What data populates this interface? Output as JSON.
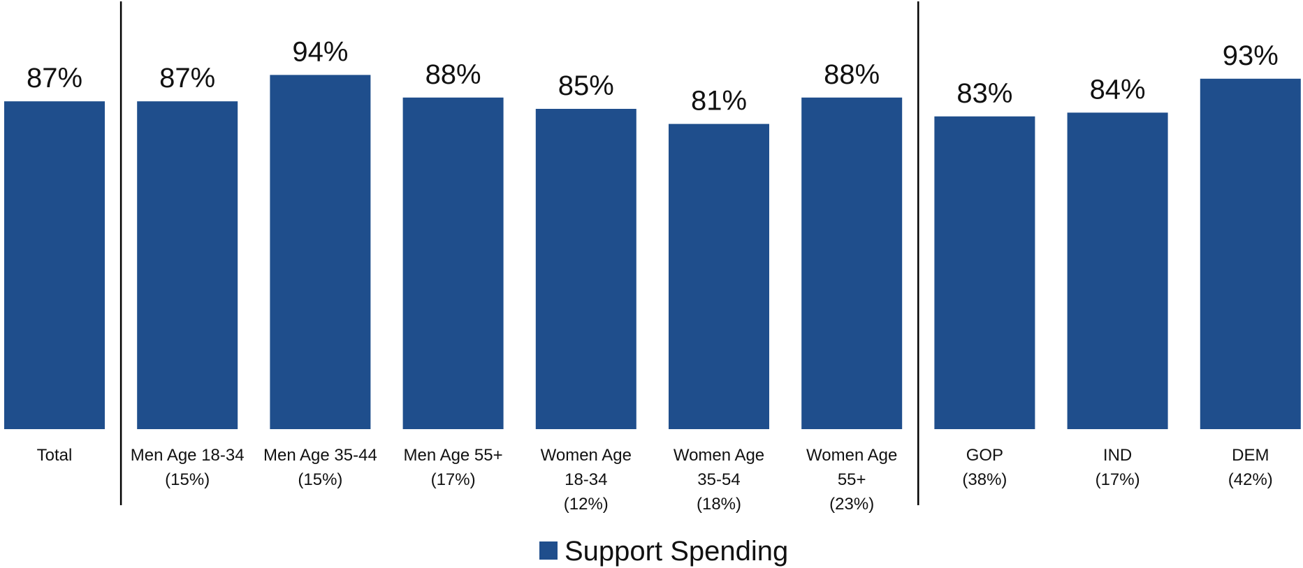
{
  "chart_data": {
    "type": "bar",
    "categories": [
      [
        "Total"
      ],
      [
        "Men Age 18-34",
        "(15%)"
      ],
      [
        "Men Age 35-44",
        "(15%)"
      ],
      [
        "Men Age 55+",
        "(17%)"
      ],
      [
        "Women Age",
        "18-34",
        "(12%)"
      ],
      [
        "Women Age",
        "35-54",
        "(18%)"
      ],
      [
        "Women Age",
        "55+",
        "(23%)"
      ],
      [
        "GOP",
        "(38%)"
      ],
      [
        "IND",
        "(17%)"
      ],
      [
        "DEM",
        "(42%)"
      ]
    ],
    "series": [
      {
        "name": "Support Spending",
        "color": "#1f4e8c",
        "values": [
          87,
          87,
          94,
          88,
          85,
          81,
          88,
          83,
          84,
          93
        ],
        "labels": [
          "87%",
          "87%",
          "94%",
          "88%",
          "85%",
          "81%",
          "88%",
          "83%",
          "84%",
          "93%"
        ]
      }
    ],
    "group_dividers_after": [
      0,
      6
    ],
    "ylim": [
      0,
      100
    ],
    "legend": "bottom-center",
    "grid": false
  }
}
